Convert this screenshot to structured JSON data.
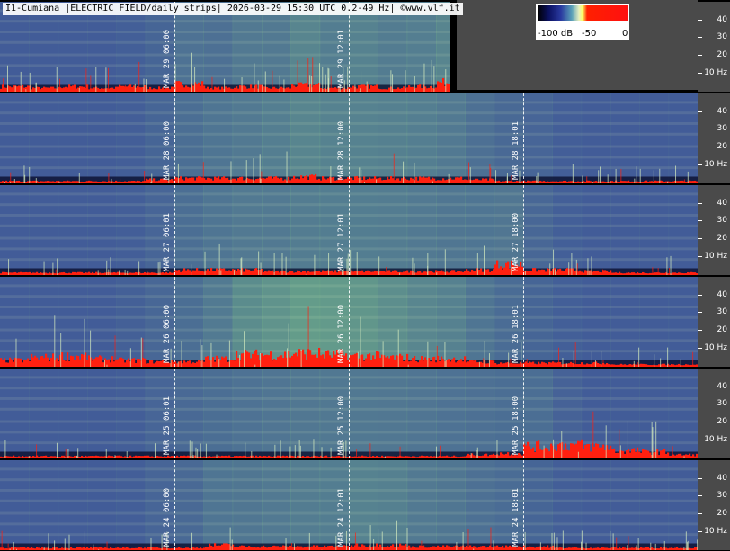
{
  "header": {
    "title": "I1-Cumiana |ELECTRIC FIELD/daily strips| 2026-03-29 15:30 UTC 0.2-49 Hz| ©www.vlf.it"
  },
  "legend": {
    "labels": [
      "-100 dB",
      "-50",
      "0"
    ],
    "colors": [
      "#000000",
      "#2a3aa0",
      "#5aa0b8",
      "#ffff60",
      "#ff2000"
    ]
  },
  "colors": {
    "background_blue": "#3b4f9c",
    "mid_green": "#6aa688",
    "bright": "#d8f0c0",
    "activity_red": "#ff2010",
    "axis_panel": "#4a4a4a"
  },
  "chart_data": {
    "type": "heatmap",
    "title": "I1-Cumiana |ELECTRIC FIELD/daily strips| 2026-03-29 15:30 UTC 0.2-49 Hz| ©www.vlf.it",
    "y_unit": "Hz",
    "y_ticks": [
      "40",
      "30",
      "20",
      "10 Hz"
    ],
    "y_tick_values": [
      40,
      30,
      20,
      10
    ],
    "ylim": [
      0.2,
      49
    ],
    "color_scale": {
      "min": "-100 dB",
      "mid": "-50",
      "max": "0"
    },
    "strips": [
      {
        "date": "MAR 29",
        "markers": [
          "06:00",
          "12:01"
        ],
        "marker_hours": [
          6,
          12
        ],
        "data_until_hour": 15.5,
        "activity": [
          0.3,
          0.2,
          0.3,
          0.2,
          0.3,
          0.2,
          0.5,
          0.2,
          0.3,
          0.2,
          0.4,
          0.2,
          0.3,
          0.2,
          0.3,
          0.6
        ]
      },
      {
        "date": "MAR 28",
        "markers": [
          "06:00",
          "12:00",
          "18:01"
        ],
        "marker_hours": [
          6,
          12,
          18
        ],
        "data_until_hour": 24,
        "activity": [
          0.1,
          0.1,
          0.1,
          0.1,
          0.1,
          0.2,
          0.3,
          0.3,
          0.3,
          0.3,
          0.4,
          0.3,
          0.3,
          0.3,
          0.3,
          0.3,
          0.2,
          0.1,
          0.1,
          0.1,
          0.1,
          0.1,
          0.1,
          0.1
        ]
      },
      {
        "date": "MAR 27",
        "markers": [
          "06:01",
          "12:01",
          "18:00"
        ],
        "marker_hours": [
          6,
          12,
          18
        ],
        "data_until_hour": 24,
        "activity": [
          0.1,
          0.1,
          0.1,
          0.1,
          0.1,
          0.1,
          0.3,
          0.3,
          0.3,
          0.2,
          0.2,
          0.2,
          0.2,
          0.2,
          0.2,
          0.2,
          0.3,
          0.7,
          0.3,
          0.3,
          0.2,
          0.1,
          0.1,
          0.1
        ]
      },
      {
        "date": "MAR 26",
        "markers": [
          "06:00",
          "12:00",
          "18:01"
        ],
        "marker_hours": [
          6,
          12,
          18
        ],
        "data_until_hour": 24,
        "activity": [
          0.4,
          0.6,
          0.7,
          0.5,
          0.4,
          0.3,
          0.3,
          0.5,
          0.8,
          0.8,
          0.9,
          0.8,
          0.7,
          0.6,
          0.5,
          0.5,
          0.3,
          0.2,
          0.2,
          0.2,
          0.2,
          0.1,
          0.1,
          0.1
        ]
      },
      {
        "date": "MAR 25",
        "markers": [
          "06:01",
          "12:00",
          "18:00"
        ],
        "marker_hours": [
          6,
          12,
          18
        ],
        "data_until_hour": 24,
        "activity": [
          0.1,
          0.1,
          0.1,
          0.1,
          0.1,
          0.1,
          0.1,
          0.1,
          0.1,
          0.1,
          0.1,
          0.1,
          0.1,
          0.1,
          0.1,
          0.1,
          0.2,
          0.3,
          0.8,
          0.9,
          0.8,
          0.5,
          0.4,
          0.2
        ]
      },
      {
        "date": "MAR 24",
        "markers": [
          "06:00",
          "12:01",
          "18:01"
        ],
        "marker_hours": [
          6,
          12,
          18
        ],
        "data_until_hour": 24,
        "activity": [
          0.1,
          0.1,
          0.1,
          0.1,
          0.1,
          0.1,
          0.1,
          0.3,
          0.2,
          0.2,
          0.2,
          0.2,
          0.3,
          0.3,
          0.2,
          0.2,
          0.2,
          0.2,
          0.2,
          0.1,
          0.1,
          0.1,
          0.1,
          0.1
        ]
      }
    ]
  }
}
